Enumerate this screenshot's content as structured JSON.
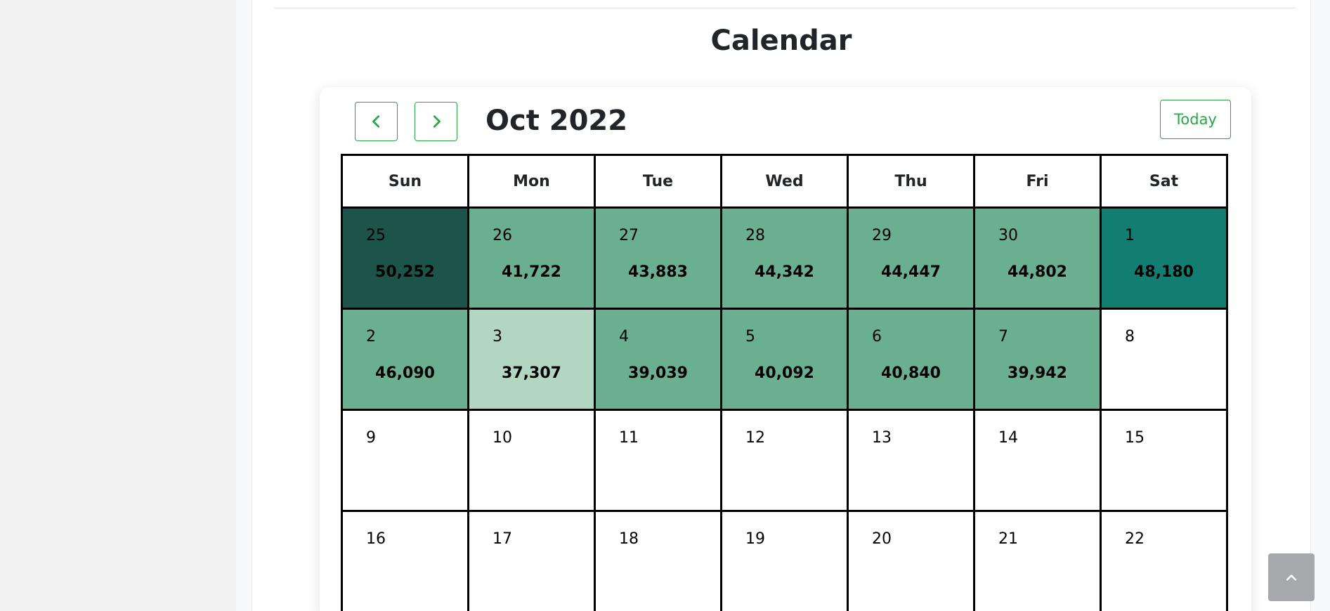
{
  "page": {
    "title": "Calendar"
  },
  "calendar": {
    "month_label": "Oct 2022",
    "today_label": "Today",
    "weekdays": [
      "Sun",
      "Mon",
      "Tue",
      "Wed",
      "Thu",
      "Fri",
      "Sat"
    ],
    "weeks": [
      [
        {
          "day": "25",
          "value": "50,252",
          "color": "#1c5449"
        },
        {
          "day": "26",
          "value": "41,722",
          "color": "#6baf91"
        },
        {
          "day": "27",
          "value": "43,883",
          "color": "#6baf91"
        },
        {
          "day": "28",
          "value": "44,342",
          "color": "#6baf91"
        },
        {
          "day": "29",
          "value": "44,447",
          "color": "#6baf91"
        },
        {
          "day": "30",
          "value": "44,802",
          "color": "#6baf91"
        },
        {
          "day": "1",
          "value": "48,180",
          "color": "#127e71"
        }
      ],
      [
        {
          "day": "2",
          "value": "46,090",
          "color": "#6baf91"
        },
        {
          "day": "3",
          "value": "37,307",
          "color": "#b3d6c3"
        },
        {
          "day": "4",
          "value": "39,039",
          "color": "#6baf91"
        },
        {
          "day": "5",
          "value": "40,092",
          "color": "#6baf91"
        },
        {
          "day": "6",
          "value": "40,840",
          "color": "#6baf91"
        },
        {
          "day": "7",
          "value": "39,942",
          "color": "#6baf91"
        },
        {
          "day": "8",
          "value": "",
          "color": "#ffffff"
        }
      ],
      [
        {
          "day": "9",
          "value": "",
          "color": "#ffffff"
        },
        {
          "day": "10",
          "value": "",
          "color": "#ffffff"
        },
        {
          "day": "11",
          "value": "",
          "color": "#ffffff"
        },
        {
          "day": "12",
          "value": "",
          "color": "#ffffff"
        },
        {
          "day": "13",
          "value": "",
          "color": "#ffffff"
        },
        {
          "day": "14",
          "value": "",
          "color": "#ffffff"
        },
        {
          "day": "15",
          "value": "",
          "color": "#ffffff"
        }
      ],
      [
        {
          "day": "16",
          "value": "",
          "color": "#ffffff"
        },
        {
          "day": "17",
          "value": "",
          "color": "#ffffff"
        },
        {
          "day": "18",
          "value": "",
          "color": "#ffffff"
        },
        {
          "day": "19",
          "value": "",
          "color": "#ffffff"
        },
        {
          "day": "20",
          "value": "",
          "color": "#ffffff"
        },
        {
          "day": "21",
          "value": "",
          "color": "#ffffff"
        },
        {
          "day": "22",
          "value": "",
          "color": "#ffffff"
        }
      ]
    ]
  },
  "colors": {
    "accent": "#28a745",
    "scroll_top_bg": "#a6a8ab"
  },
  "icons": {
    "prev": "chevron-left-icon",
    "next": "chevron-right-icon",
    "scroll_top": "chevron-up-icon"
  }
}
